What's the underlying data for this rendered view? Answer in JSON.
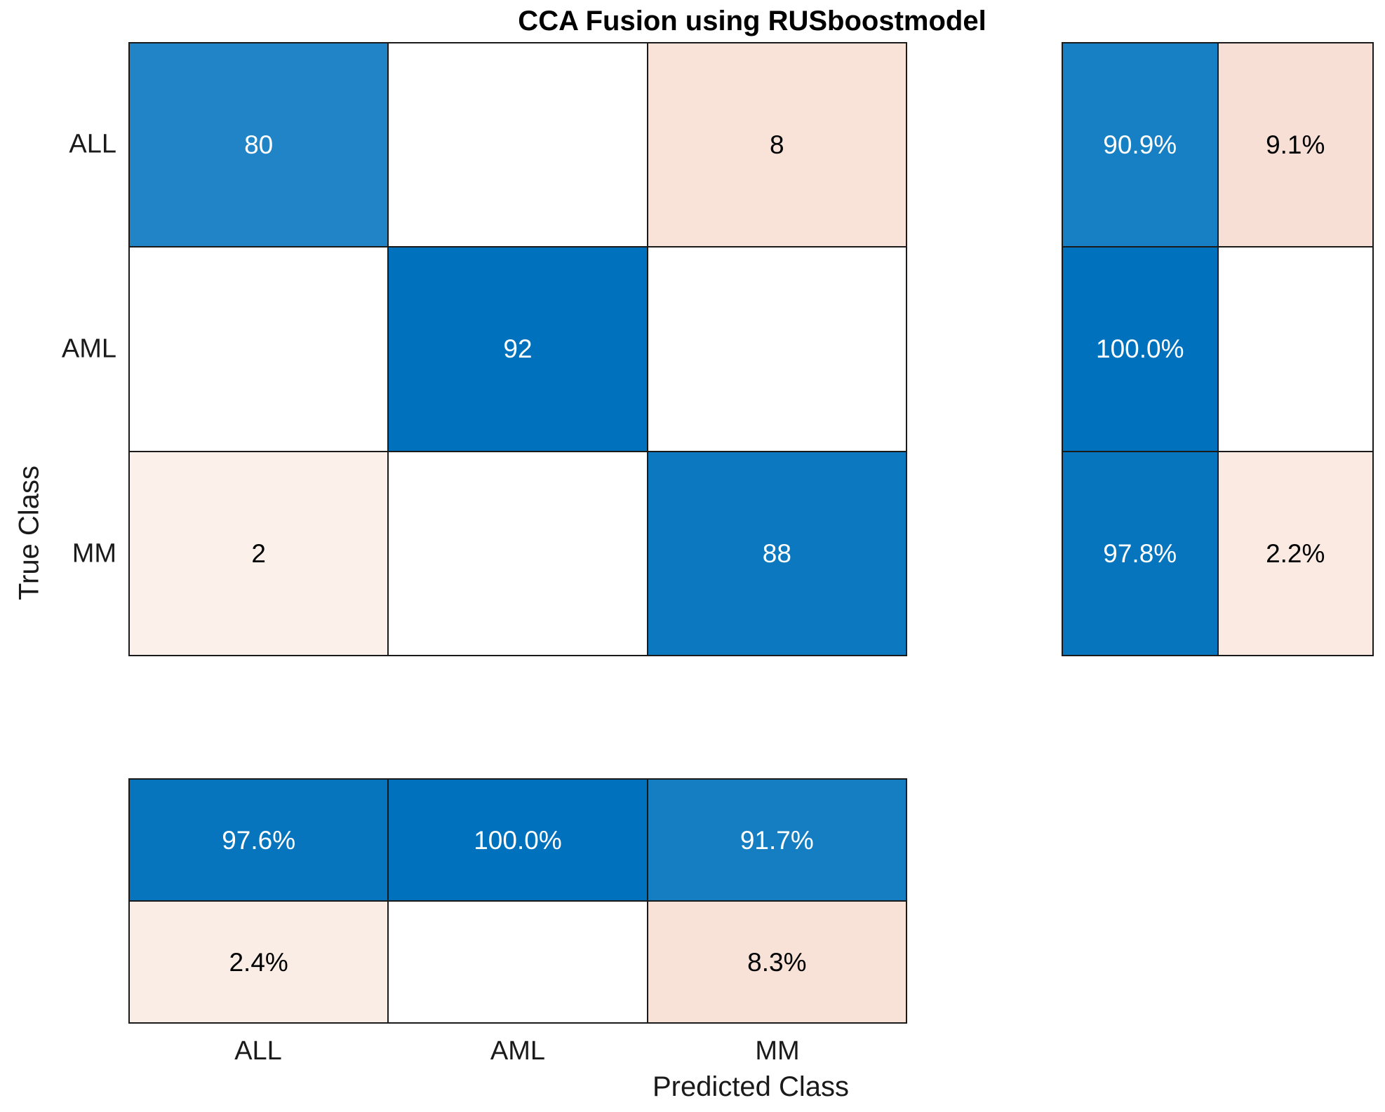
{
  "title": "CCA Fusion using RUSboostmodel",
  "axes": {
    "x_label": "Predicted Class",
    "y_label": "True Class"
  },
  "classes": [
    "ALL",
    "AML",
    "MM"
  ],
  "colors": {
    "background": "#ffffff",
    "grid_border": "#1a1a1a",
    "diagonal_base_blue": "#0072bd",
    "offdiagonal_pink": "#f8e1d7",
    "label_color": "#1a1a1a",
    "title_color": "#000000",
    "cell_text_on_blue": "#ffffff",
    "cell_text_on_pink": "#000000"
  },
  "matrix": {
    "rows": [
      [
        {
          "text": "80",
          "bg": "#2184c6",
          "fg": "#ffffff"
        },
        {
          "text": "",
          "bg": "#ffffff",
          "fg": "#000000"
        },
        {
          "text": "8",
          "bg": "#f9e3d9",
          "fg": "#000000"
        }
      ],
      [
        {
          "text": "",
          "bg": "#ffffff",
          "fg": "#000000"
        },
        {
          "text": "92",
          "bg": "#0072bd",
          "fg": "#ffffff"
        },
        {
          "text": "",
          "bg": "#ffffff",
          "fg": "#000000"
        }
      ],
      [
        {
          "text": "2",
          "bg": "#fbf0ea",
          "fg": "#000000"
        },
        {
          "text": "",
          "bg": "#ffffff",
          "fg": "#000000"
        },
        {
          "text": "88",
          "bg": "#0b78c0",
          "fg": "#ffffff"
        }
      ]
    ]
  },
  "row_summary": {
    "rows": [
      [
        {
          "text": "90.9%",
          "bg": "#177fc3",
          "fg": "#ffffff"
        },
        {
          "text": "9.1%",
          "bg": "#f7dfd5",
          "fg": "#000000"
        }
      ],
      [
        {
          "text": "100.0%",
          "bg": "#0072bd",
          "fg": "#ffffff"
        },
        {
          "text": "",
          "bg": "#ffffff",
          "fg": "#000000"
        }
      ],
      [
        {
          "text": "97.8%",
          "bg": "#0675be",
          "fg": "#ffffff"
        },
        {
          "text": "2.2%",
          "bg": "#faeae2",
          "fg": "#000000"
        }
      ]
    ]
  },
  "col_summary": {
    "rows": [
      [
        {
          "text": "97.6%",
          "bg": "#0775be",
          "fg": "#ffffff"
        },
        {
          "text": "100.0%",
          "bg": "#0072bd",
          "fg": "#ffffff"
        },
        {
          "text": "91.7%",
          "bg": "#157ec2",
          "fg": "#ffffff"
        }
      ],
      [
        {
          "text": "2.4%",
          "bg": "#faede6",
          "fg": "#000000"
        },
        {
          "text": "",
          "bg": "#ffffff",
          "fg": "#000000"
        },
        {
          "text": "8.3%",
          "bg": "#f8e1d7",
          "fg": "#000000"
        }
      ]
    ]
  },
  "chart_data": {
    "type": "heatmap",
    "subtype": "confusion-matrix",
    "title": "CCA Fusion using RUSboostmodel",
    "xlabel": "Predicted Class",
    "ylabel": "True Class",
    "classes": [
      "ALL",
      "AML",
      "MM"
    ],
    "confusion_matrix": [
      [
        80,
        0,
        8
      ],
      [
        0,
        92,
        0
      ],
      [
        2,
        0,
        88
      ]
    ],
    "row_summary_pct_correct_incorrect": [
      [
        90.9,
        9.1
      ],
      [
        100.0,
        null
      ],
      [
        97.8,
        2.2
      ]
    ],
    "col_summary_pct_correct_incorrect": [
      [
        97.6,
        100.0,
        91.7
      ],
      [
        2.4,
        null,
        8.3
      ]
    ],
    "legend": "none",
    "grid": "cell-borders"
  }
}
